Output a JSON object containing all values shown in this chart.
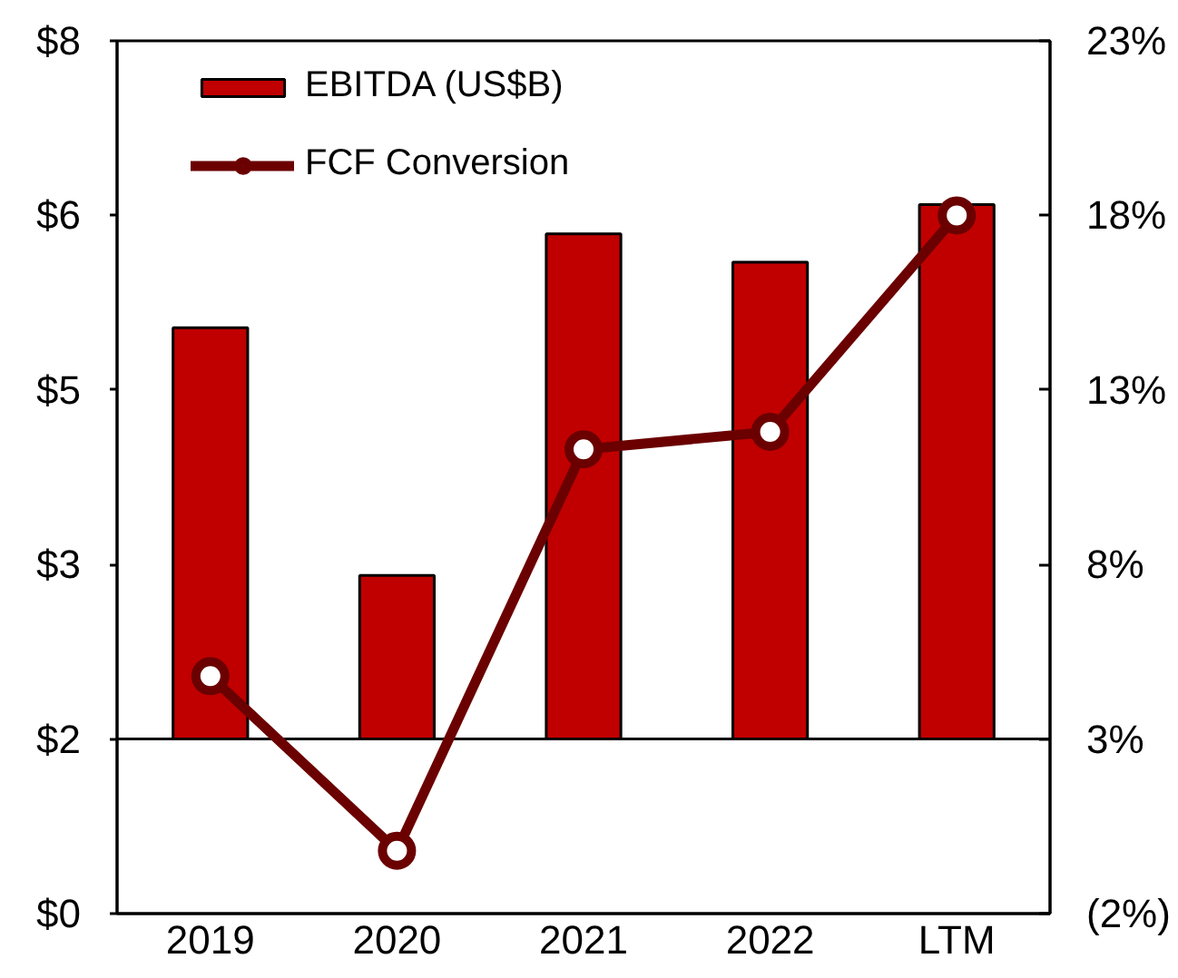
{
  "chart_data": {
    "type": "bar",
    "categories": [
      "2019",
      "2020",
      "2021",
      "2022",
      "LTM"
    ],
    "series": [
      {
        "name": "EBITDA (US$B)",
        "color": "#c00000",
        "base": [
          1.6,
          1.6,
          1.6,
          1.6,
          1.6
        ],
        "values": [
          3.77,
          1.5,
          4.63,
          4.37,
          4.9
        ]
      },
      {
        "name": "FCF Conversion",
        "type": "line",
        "axis": "y2",
        "color": "#6b0000",
        "marker": "circle",
        "values": [
          4.8,
          -0.2,
          11.3,
          11.8,
          18.0
        ]
      }
    ],
    "ylim": [
      0,
      8
    ],
    "yticks": [
      {
        "value": 0,
        "label": "$0"
      },
      {
        "value": 1.6,
        "label": "$2"
      },
      {
        "value": 3.2,
        "label": "$3"
      },
      {
        "value": 4.8,
        "label": "$5"
      },
      {
        "value": 6.4,
        "label": "$6"
      },
      {
        "value": 8,
        "label": "$8"
      }
    ],
    "y2lim": [
      -2,
      23
    ],
    "y2ticks": [
      {
        "value": -2,
        "label": "(2%)"
      },
      {
        "value": 3,
        "label": "3%"
      },
      {
        "value": 8,
        "label": "8%"
      },
      {
        "value": 13,
        "label": "13%"
      },
      {
        "value": 18,
        "label": "18%"
      },
      {
        "value": 23,
        "label": "23%"
      }
    ],
    "ref_lines": [
      {
        "axis": "y",
        "value": 1.6
      }
    ],
    "legend": "top left",
    "grid": false
  }
}
